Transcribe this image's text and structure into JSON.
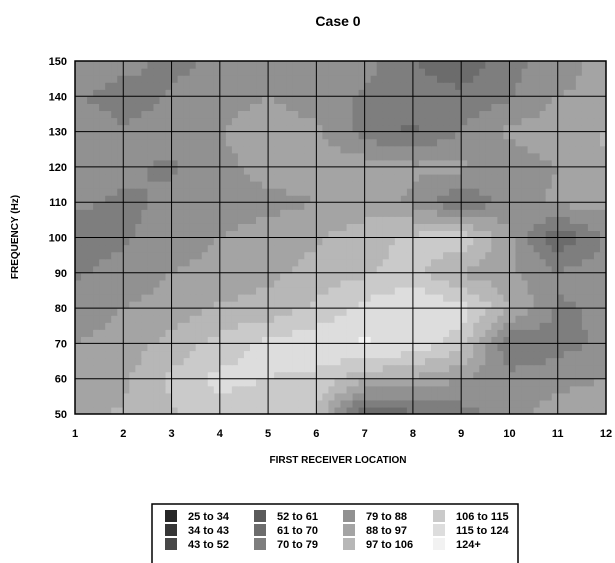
{
  "chart_data": {
    "type": "heatmap",
    "title": "Case 0",
    "xlabel": "FIRST RECEIVER LOCATION",
    "ylabel": "FREQUENCY (Hz)",
    "xlim": [
      1,
      12
    ],
    "ylim": [
      50,
      150
    ],
    "x_ticks": [
      "1",
      "2",
      "3",
      "4",
      "5",
      "6",
      "7",
      "8",
      "9",
      "10",
      "11",
      "12"
    ],
    "y_ticks": [
      "50",
      "60",
      "70",
      "80",
      "90",
      "100",
      "110",
      "120",
      "130",
      "140",
      "150"
    ],
    "grid": true,
    "x": [
      1,
      2,
      3,
      4,
      5,
      6,
      7,
      8,
      9,
      10,
      11,
      12
    ],
    "y": [
      50,
      60,
      70,
      80,
      90,
      100,
      110,
      120,
      130,
      140,
      150
    ],
    "z": [
      [
        95,
        98,
        105,
        110,
        108,
        106,
        60,
        68,
        75,
        85,
        92,
        95
      ],
      [
        92,
        95,
        108,
        118,
        115,
        112,
        100,
        95,
        88,
        82,
        85,
        88
      ],
      [
        88,
        92,
        100,
        110,
        118,
        122,
        125,
        122,
        110,
        70,
        75,
        82
      ],
      [
        82,
        88,
        92,
        98,
        100,
        108,
        118,
        124,
        120,
        98,
        78,
        80
      ],
      [
        78,
        82,
        88,
        92,
        95,
        100,
        105,
        110,
        96,
        90,
        80,
        85
      ],
      [
        75,
        78,
        82,
        88,
        92,
        96,
        102,
        108,
        112,
        90,
        62,
        80
      ],
      [
        80,
        78,
        80,
        85,
        85,
        88,
        92,
        86,
        70,
        84,
        90,
        92
      ],
      [
        85,
        80,
        78,
        85,
        92,
        92,
        94,
        90,
        90,
        82,
        88,
        96
      ],
      [
        85,
        80,
        82,
        88,
        92,
        90,
        75,
        68,
        80,
        90,
        94,
        98
      ],
      [
        80,
        75,
        80,
        85,
        88,
        84,
        78,
        75,
        72,
        78,
        88,
        90
      ],
      [
        88,
        82,
        76,
        82,
        86,
        85,
        82,
        70,
        64,
        76,
        84,
        92
      ]
    ],
    "legend": [
      {
        "label": "25 to 34",
        "color": "#262626"
      },
      {
        "label": "34 to 43",
        "color": "#363636"
      },
      {
        "label": "43 to 52",
        "color": "#484848"
      },
      {
        "label": "52 to 61",
        "color": "#5a5a5a"
      },
      {
        "label": "61 to 70",
        "color": "#6c6c6c"
      },
      {
        "label": "70 to 79",
        "color": "#7e7e7e"
      },
      {
        "label": "79 to 88",
        "color": "#919191"
      },
      {
        "label": "88 to 97",
        "color": "#a4a4a4"
      },
      {
        "label": "97 to 106",
        "color": "#b7b7b7"
      },
      {
        "label": "106 to 115",
        "color": "#cacaca"
      },
      {
        "label": "115 to 124",
        "color": "#dddddd"
      },
      {
        "label": "124+",
        "color": "#f2f2f2"
      }
    ]
  }
}
